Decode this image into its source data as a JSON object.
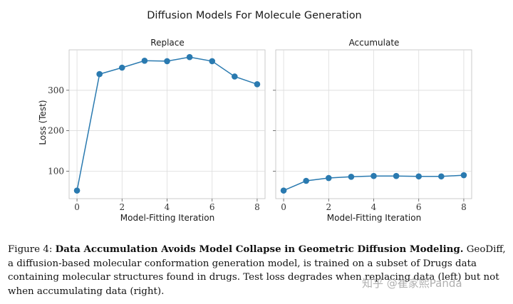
{
  "figure": {
    "suptitle": "Diffusion Models For Molecule Generation",
    "ylabel": "Loss (Test)",
    "line_color": "#2a7ab0"
  },
  "chart_data": [
    {
      "type": "line",
      "title": "Replace",
      "xlabel": "Model-Fitting Iteration",
      "ylabel": "Loss (Test)",
      "x": [
        0,
        1,
        2,
        3,
        4,
        5,
        6,
        7,
        8
      ],
      "series": [
        {
          "values": [
            52,
            340,
            356,
            373,
            372,
            382,
            372,
            334,
            315
          ]
        }
      ],
      "xticks": [
        0,
        2,
        4,
        6,
        8
      ],
      "yticks": [
        100,
        200,
        300
      ],
      "xlim": [
        -0.35,
        8.35
      ],
      "ylim": [
        32,
        400
      ],
      "grid": true
    },
    {
      "type": "line",
      "title": "Accumulate",
      "xlabel": "Model-Fitting Iteration",
      "x": [
        0,
        1,
        2,
        3,
        4,
        5,
        6,
        7,
        8
      ],
      "series": [
        {
          "values": [
            52,
            76,
            83,
            86,
            88,
            88,
            87,
            87,
            90
          ]
        }
      ],
      "xticks": [
        0,
        2,
        4,
        6,
        8
      ],
      "yticks": [
        100,
        200,
        300
      ],
      "xlim": [
        -0.35,
        8.35
      ],
      "ylim": [
        32,
        400
      ],
      "grid": true
    }
  ],
  "caption": {
    "prefix": "Figure 4: ",
    "bold": "Data Accumulation Avoids Model Collapse in Geometric Diffusion Modeling.",
    "body": " GeoDiff, a diffusion-based molecular conformation generation model, is trained on a subset of Drugs data containing molecular structures found in drugs. Test loss degrades when replacing data (left) but not when accumulating data (right)."
  },
  "watermark": "知乎 @崔家熙Panda"
}
